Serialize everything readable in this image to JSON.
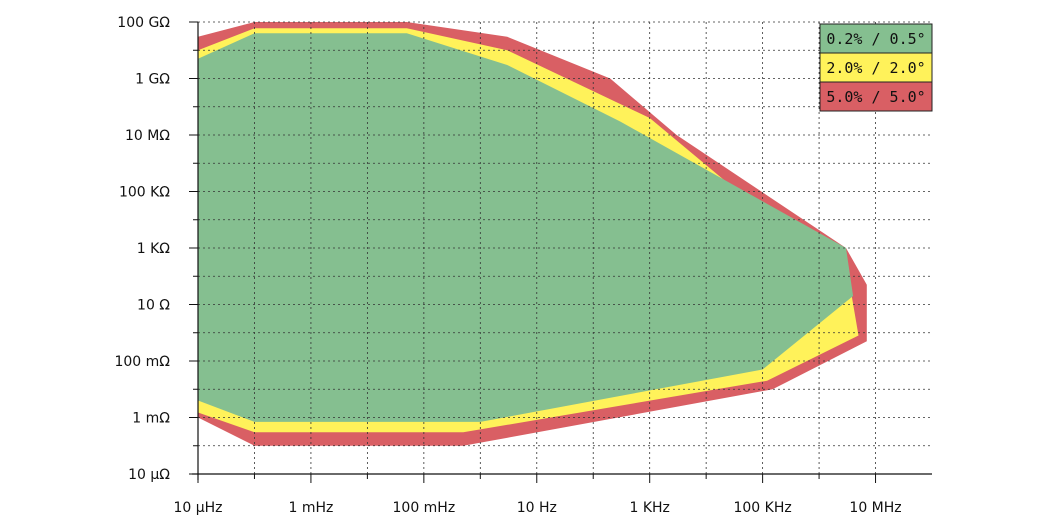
{
  "chart_data": {
    "type": "area",
    "title": "",
    "xlabel": "",
    "ylabel": "",
    "x_scale": "log",
    "y_scale": "log",
    "xlim": [
      1e-05,
      100000000.0
    ],
    "ylim": [
      1e-05,
      100000000000.0
    ],
    "grid": true,
    "x_tick_values": [
      1e-05,
      0.001,
      0.1,
      10.0,
      1000.0,
      100000.0,
      10000000.0
    ],
    "x_tick_labels": [
      "10 µHz",
      "1 mHz",
      "100 mHz",
      "10 Hz",
      "1 KHz",
      "100 KHz",
      "10 MHz"
    ],
    "x_minor_ticks": [
      0.0001,
      0.01,
      1.0,
      100.0,
      10000.0,
      1000000.0
    ],
    "y_tick_values": [
      1e-05,
      0.001,
      0.1,
      10.0,
      1000.0,
      100000.0,
      10000000.0,
      1000000000.0,
      100000000000.0
    ],
    "y_tick_labels": [
      "10 µΩ",
      "1 mΩ",
      "100 mΩ",
      "10 Ω",
      "1 KΩ",
      "100 KΩ",
      "10 MΩ",
      "1 GΩ",
      "100 GΩ"
    ],
    "y_minor_ticks": [
      0.0001,
      0.01,
      1.0,
      100.0,
      10000.0,
      1000000.0,
      100000000.0,
      10000000000.0
    ],
    "legend_position": "top-right",
    "series": [
      {
        "name": "5.0% / 5.0°",
        "color": "#d95f64",
        "points": [
          [
            1e-05,
            30000000000.0
          ],
          [
            0.0001,
            100000000000.0
          ],
          [
            0.05,
            100000000000.0
          ],
          [
            3,
            30000000000.0
          ],
          [
            200,
            1000000000.0
          ],
          [
            3000,
            10000000.0
          ],
          [
            3000000.0,
            1000.0
          ],
          [
            7000000.0,
            50.0
          ],
          [
            7000000.0,
            0.5
          ],
          [
            150000.0,
            0.01
          ],
          [
            0.5,
            0.0001
          ],
          [
            0.0001,
            0.0001
          ],
          [
            1e-05,
            0.001
          ]
        ]
      },
      {
        "name": "2.0% / 2.0°",
        "color": "#fff25a",
        "points": [
          [
            1e-05,
            10000000000.0
          ],
          [
            0.0001,
            60000000000.0
          ],
          [
            0.05,
            60000000000.0
          ],
          [
            3,
            10000000000.0
          ],
          [
            1000,
            40000000.0
          ],
          [
            3500000.0,
            50.0
          ],
          [
            5000000.0,
            0.8
          ],
          [
            120000.0,
            0.02
          ],
          [
            0.5,
            0.0003
          ],
          [
            0.0001,
            0.0003
          ],
          [
            1e-05,
            0.0015
          ]
        ]
      },
      {
        "name": "0.2% / 0.5°",
        "color": "#85bf90",
        "points": [
          [
            1e-05,
            5000000000.0
          ],
          [
            0.0001,
            40000000000.0
          ],
          [
            0.05,
            40000000000.0
          ],
          [
            3,
            3000000000.0
          ],
          [
            300,
            30000000.0
          ],
          [
            3000000.0,
            1000.0
          ],
          [
            4000000.0,
            20
          ],
          [
            100000.0,
            0.05
          ],
          [
            1,
            0.0007
          ],
          [
            0.0001,
            0.0007
          ],
          [
            1e-05,
            0.004
          ]
        ]
      }
    ],
    "legend_order": [
      "0.2% / 0.5°",
      "2.0% / 2.0°",
      "5.0% / 5.0°"
    ]
  }
}
